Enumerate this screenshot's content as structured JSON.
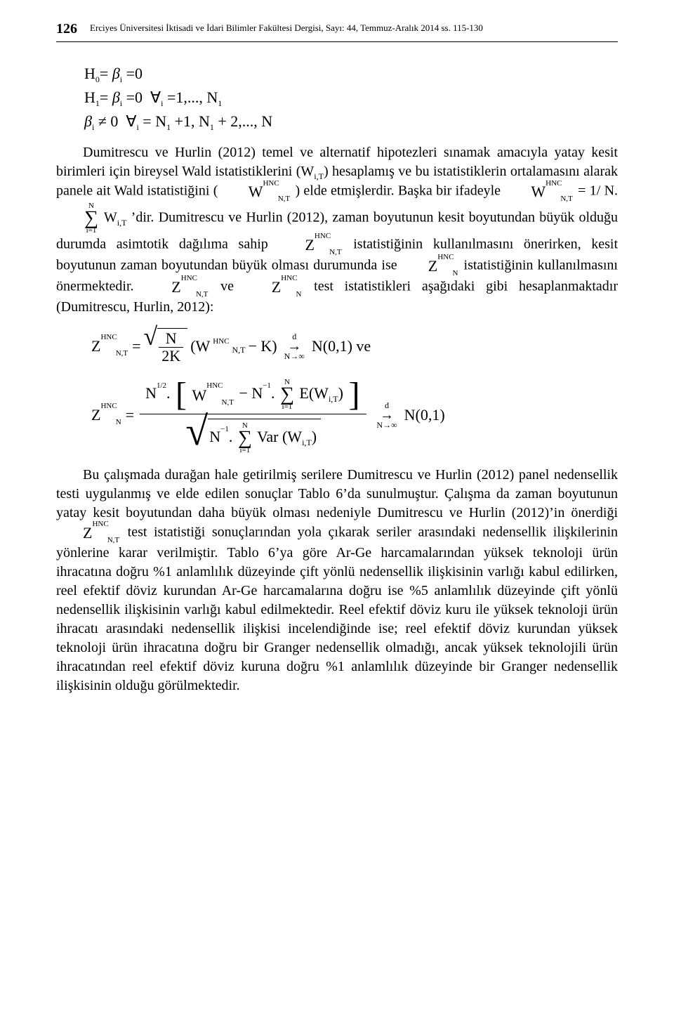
{
  "header": {
    "page_number": "126",
    "journal_line": "Erciyes Üniversitesi İktisadi ve İdari Bilimler Fakültesi Dergisi, Sayı: 44, Temmuz-Aralık 2014 ss. 115-130"
  },
  "eq_block": {
    "line1": "H₀= βᵢ =0",
    "line2": "H₁= βᵢ =0  ∀ᵢ =1,..., N₁",
    "line3": "βᵢ ≠ 0  ∀ᵢ = N₁ +1, N₁ + 2,..., N"
  },
  "body": {
    "p1a": "Dumitrescu ve Hurlin (2012) temel ve alternatif hipotezleri sınamak amacıyla yatay kesit birimleri için bireysel Wald istatistiklerini (W",
    "p1a_sub": "i,T",
    "p1b": ") hesaplamış ve bu istatistiklerin ortalamasını alarak panele ait Wald istatistiğini (",
    "p1c_mid": ")  elde  etmişlerdir.  Başka  bir  ifadeyle  ",
    "p1c_eq_lhs": "W",
    "p1c_eq_rhs": " = 1/ N.",
    "p1c_tail": " ’dir.",
    "p1d": "Dumitrescu ve Hurlin (2012), zaman boyutunun kesit boyutundan büyük olduğu durumda asimtotik dağılıma sahip ",
    "p1e_a": " istatistiğinin kullanılmasını önerirken, kesit boyutunun zaman boyutundan büyük olması durumunda ise ",
    "p1e_b": " istatistiğinin kullanılmasını önermektedir. ",
    "p1e_c": " test istatistikleri aşağıdaki gibi hesaplanmaktadır (Dumitrescu, Hurlin, 2012):",
    "Z_label": "Z",
    "hnc": "HNC",
    "NT": "N,T",
    "N": "N",
    "eq1_inside": "(W",
    "eq1_inside_tail": " − K)",
    "eq1_rhs": " N(0,1) ve",
    "eq2_num_a": "N",
    "eq2_num_b": "1/2",
    "eq2_num_dot": ". ",
    "eq2_rhs": " N(0,1)",
    "var_label": "Var (W",
    "e_label": "E(W",
    "iT": "i,T",
    "close_paren": ")",
    "sum_top": "N",
    "sum_bot": "i=1",
    "neg1": "−1",
    "arrow_top": "d",
    "arrow_mid": "→",
    "arrow_bot": "N→∞",
    "frac_N": "N",
    "frac_2K": "2K",
    "W_base": "W",
    "ve_label": " ve ",
    "p2": "Bu çalışmada durağan hale getirilmiş serilere Dumitrescu ve Hurlin (2012) panel nedensellik testi uygulanmış ve elde edilen sonuçlar Tablo 6’da sunulmuştur. Çalışma da zaman boyutunun yatay kesit boyutundan daha büyük olması nedeniyle Dumitrescu ve Hurlin (2012)’in önerdiği ",
    "p2_tail": " test istatistiği sonuçlarından yola çıkarak seriler arasındaki nedensellik ilişkilerinin yönlerine karar verilmiştir. Tablo 6’ya göre Ar-Ge harcamalarından yüksek teknoloji ürün ihracatına doğru %1 anlamlılık düzeyinde çift yönlü nedensellik ilişkisinin varlığı kabul edilirken, reel efektif döviz kurundan Ar-Ge harcamalarına doğru ise %5 anlamlılık düzeyinde çift yönlü nedensellik ilişkisinin varlığı kabul edilmektedir. Reel efektif döviz kuru ile yüksek teknoloji ürün ihracatı arasındaki nedensellik ilişkisi incelendiğinde ise; reel efektif döviz kurundan yüksek teknoloji ürün ihracatına doğru bir Granger nedensellik olmadığı, ancak yüksek teknolojili ürün ihracatından reel efektif döviz kuruna doğru %1 anlamlılık düzeyinde bir Granger nedensellik ilişkisinin olduğu görülmektedir."
  },
  "colors": {
    "text": "#000000",
    "background": "#ffffff"
  },
  "typography": {
    "body_font": "Times New Roman",
    "body_size_pt": 12,
    "header_size_pt": 8
  }
}
